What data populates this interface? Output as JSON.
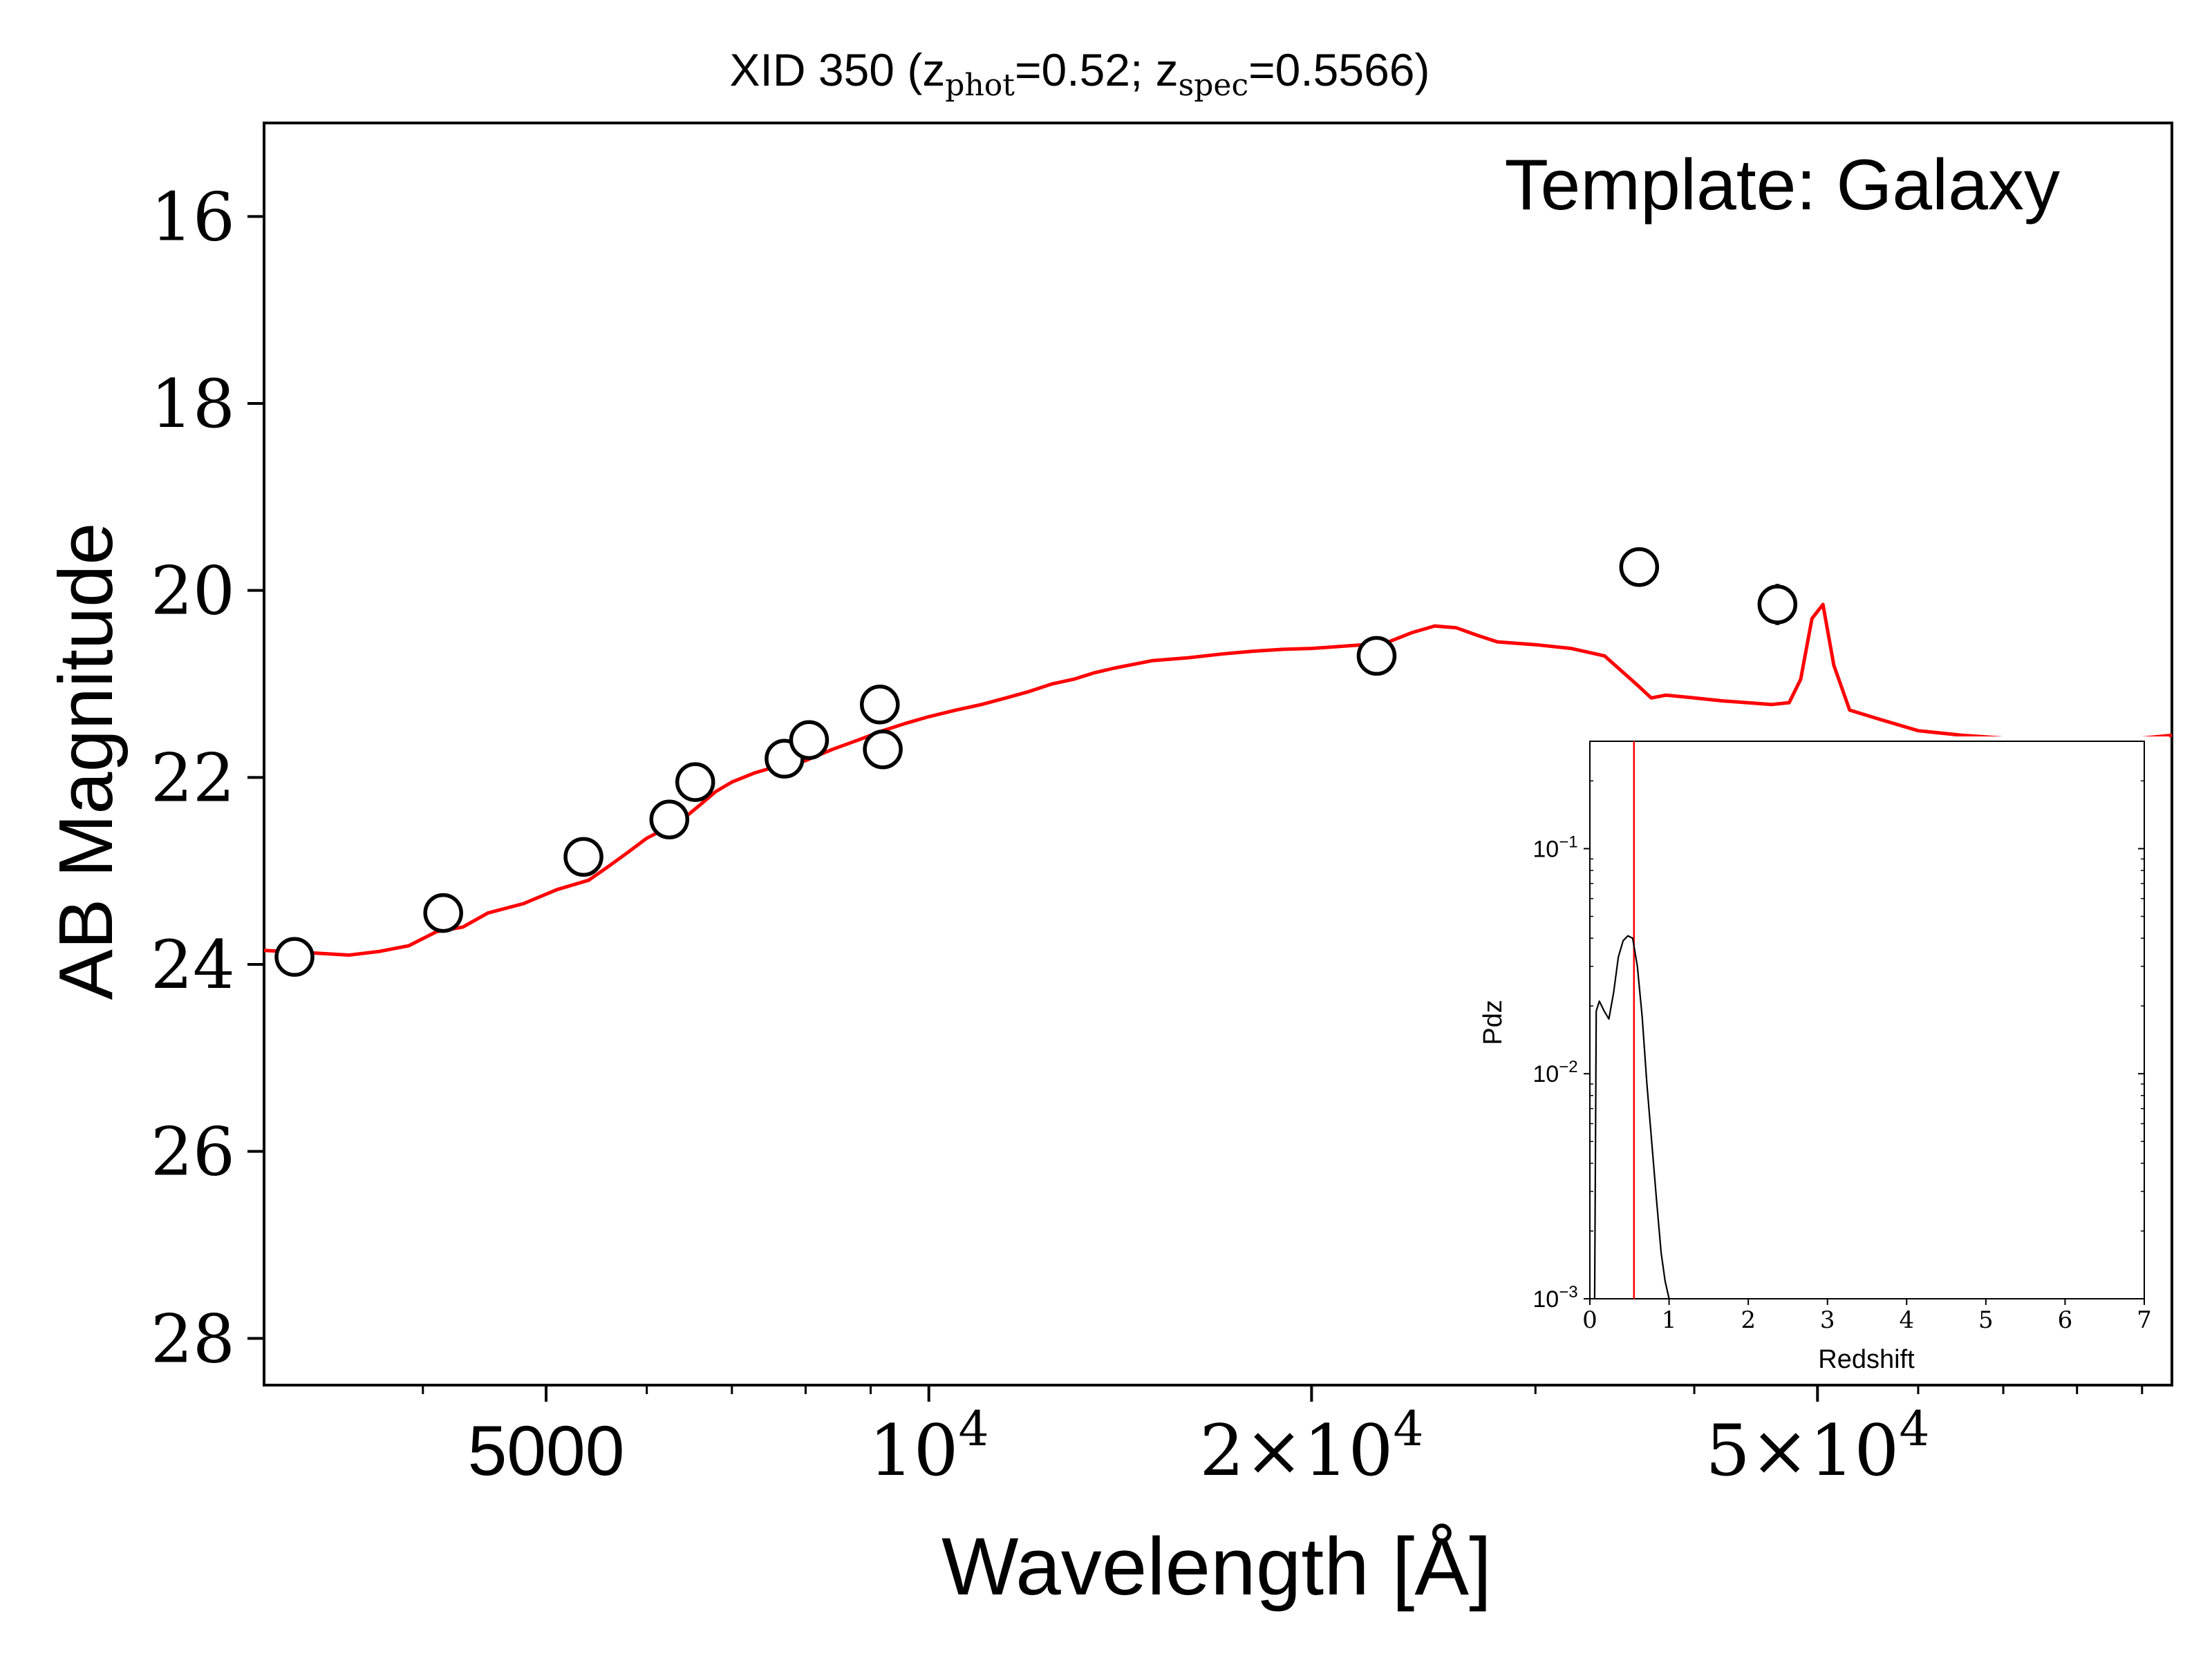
{
  "chart_data": [
    {
      "type": "scatter",
      "title": {
        "prefix": "XID 350 (z",
        "phot_sub": "phot",
        "mid": "=0.52; z",
        "spec_sub": "spec",
        "suffix": "=0.5566)"
      },
      "xlabel": "Wavelength [Å]",
      "ylabel": "AB Magnitude",
      "xscale": "log",
      "xlim": [
        3000,
        95000
      ],
      "ylim": [
        28.5,
        15
      ],
      "y_inverted": true,
      "yticks": [
        16,
        18,
        20,
        22,
        24,
        26,
        28
      ],
      "xticks": [
        {
          "value": 5000,
          "label": "5000"
        },
        {
          "value": 10000,
          "base": "10",
          "exp": "4"
        },
        {
          "value": 20000,
          "coef": "2×",
          "base": "10",
          "exp": "4"
        },
        {
          "value": 50000,
          "coef": "5×",
          "base": "10",
          "exp": "4"
        }
      ],
      "annotation": "Template: Galaxy",
      "template_color": "#ff0000",
      "template": {
        "name": "Template: Galaxy",
        "x": [
          3000,
          3300,
          3500,
          3700,
          3900,
          4100,
          4300,
          4500,
          4800,
          5100,
          5400,
          5600,
          5800,
          6000,
          6200,
          6400,
          6600,
          6800,
          7000,
          7300,
          7600,
          8000,
          8400,
          8800,
          9200,
          9600,
          10000,
          10500,
          11000,
          11500,
          12000,
          12500,
          13000,
          13500,
          14000,
          15000,
          16000,
          17000,
          18000,
          19000,
          20000,
          21000,
          22000,
          23000,
          24000,
          25000,
          26000,
          27000,
          28000,
          30000,
          32000,
          34000,
          36000,
          37000,
          38000,
          40000,
          42000,
          44000,
          46000,
          47500,
          48500,
          49500,
          50500,
          51500,
          53000,
          56000,
          60000,
          65000,
          70000,
          75000,
          80000,
          85000,
          90000,
          95000
        ],
        "y": [
          23.85,
          23.88,
          23.9,
          23.86,
          23.8,
          23.65,
          23.6,
          23.45,
          23.35,
          23.2,
          23.1,
          22.95,
          22.8,
          22.65,
          22.55,
          22.45,
          22.3,
          22.15,
          22.05,
          21.95,
          21.88,
          21.82,
          21.7,
          21.6,
          21.5,
          21.42,
          21.35,
          21.28,
          21.22,
          21.15,
          21.08,
          21.0,
          20.95,
          20.88,
          20.83,
          20.75,
          20.72,
          20.68,
          20.65,
          20.63,
          20.62,
          20.6,
          20.58,
          20.55,
          20.45,
          20.38,
          20.4,
          20.48,
          20.55,
          20.58,
          20.62,
          20.7,
          21.0,
          21.15,
          21.12,
          21.15,
          21.18,
          21.2,
          21.22,
          21.2,
          20.95,
          20.3,
          20.15,
          20.8,
          21.28,
          21.38,
          21.5,
          21.55,
          21.58,
          21.6,
          21.62,
          21.6,
          21.58,
          21.55
        ]
      },
      "series": [
        {
          "x": [
            3170,
            4150,
            5350,
            6250,
            6550,
            7700,
            8050,
            9150,
            9200,
            22500,
            36200,
            46500
          ],
          "y": [
            23.92,
            23.45,
            22.85,
            22.45,
            22.05,
            21.8,
            21.6,
            21.22,
            21.7,
            20.7,
            19.75,
            20.15
          ],
          "yerr": [
            0.08,
            0.07,
            0.06,
            0.06,
            0.05,
            0.05,
            0.05,
            0.05,
            0.05,
            0.06,
            0.2,
            0.22
          ]
        }
      ]
    },
    {
      "type": "line",
      "xlabel": "Redshift",
      "ylabel": "Pdz",
      "xlim": [
        0,
        7
      ],
      "ylim": [
        0.001,
        0.3
      ],
      "yscale": "log",
      "xticks": [
        0,
        1,
        2,
        3,
        4,
        5,
        6,
        7
      ],
      "yticks": [
        {
          "value": 0.1,
          "base": "10",
          "exp": "−1"
        },
        {
          "value": 0.01,
          "base": "10",
          "exp": "−2"
        },
        {
          "value": 0.001,
          "base": "10",
          "exp": "−3"
        }
      ],
      "spec_z": 0.5566,
      "spec_z_color": "#ff0000",
      "series": [
        {
          "x": [
            0.06,
            0.08,
            0.12,
            0.18,
            0.24,
            0.3,
            0.36,
            0.42,
            0.48,
            0.54,
            0.6,
            0.66,
            0.72,
            0.78,
            0.84,
            0.9,
            0.95,
            1.0
          ],
          "y": [
            0.001,
            0.019,
            0.021,
            0.019,
            0.0175,
            0.023,
            0.033,
            0.039,
            0.041,
            0.04,
            0.03,
            0.018,
            0.009,
            0.005,
            0.0028,
            0.0016,
            0.0012,
            0.001
          ]
        }
      ]
    }
  ]
}
